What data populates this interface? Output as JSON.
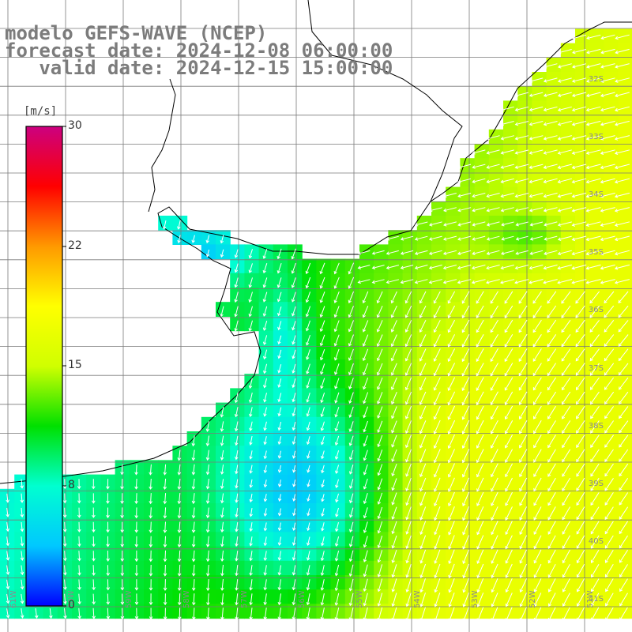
{
  "title": {
    "line1": "modelo GEFS-WAVE (NCEP)",
    "line2": "forecast date: 2024-12-08 06:00:00",
    "line3": "   valid date: 2024-12-15 15:00:00"
  },
  "colorbar": {
    "units": "[m/s]",
    "min": 0,
    "max": 30,
    "ticks": [
      "30",
      "22",
      "15",
      "8",
      "0"
    ],
    "colors": [
      "#0000ff",
      "#00c8ff",
      "#00ffd0",
      "#00e000",
      "#d0ff00",
      "#ffff00",
      "#ff9900",
      "#ff0000",
      "#cc0080"
    ]
  },
  "map": {
    "lat_labels": [
      "32S",
      "33S",
      "34S",
      "35S",
      "36S",
      "37S",
      "38S",
      "39S",
      "40S",
      "41S"
    ],
    "lon_labels": [
      "61W",
      "60W",
      "59W",
      "58W",
      "57W",
      "56W",
      "55W",
      "54W",
      "53W",
      "52W",
      "51W"
    ],
    "land_color": "#ffffff",
    "coast_color": "#000000",
    "grid_color": "#7a7a7a"
  }
}
